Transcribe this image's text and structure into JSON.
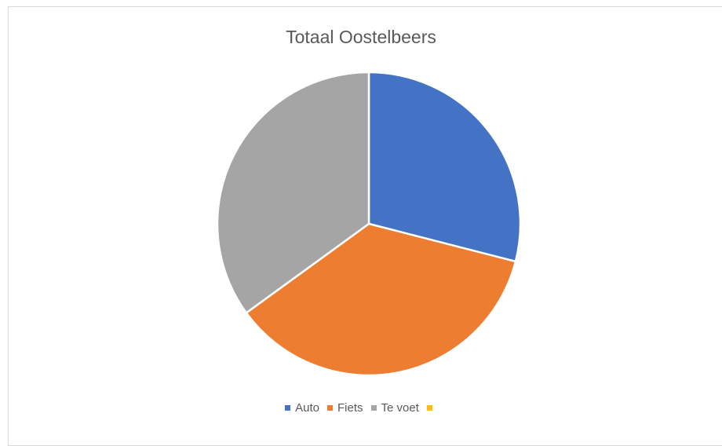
{
  "chart_data": {
    "type": "pie",
    "title": "Totaal Oostelbeers",
    "categories": [
      "Auto",
      "Fiets",
      "Te voet",
      ""
    ],
    "values": [
      29,
      36,
      35,
      0
    ],
    "colors": [
      "#4472C4",
      "#ED7D31",
      "#A5A5A5",
      "#FFC000"
    ],
    "legend_position": "bottom"
  }
}
